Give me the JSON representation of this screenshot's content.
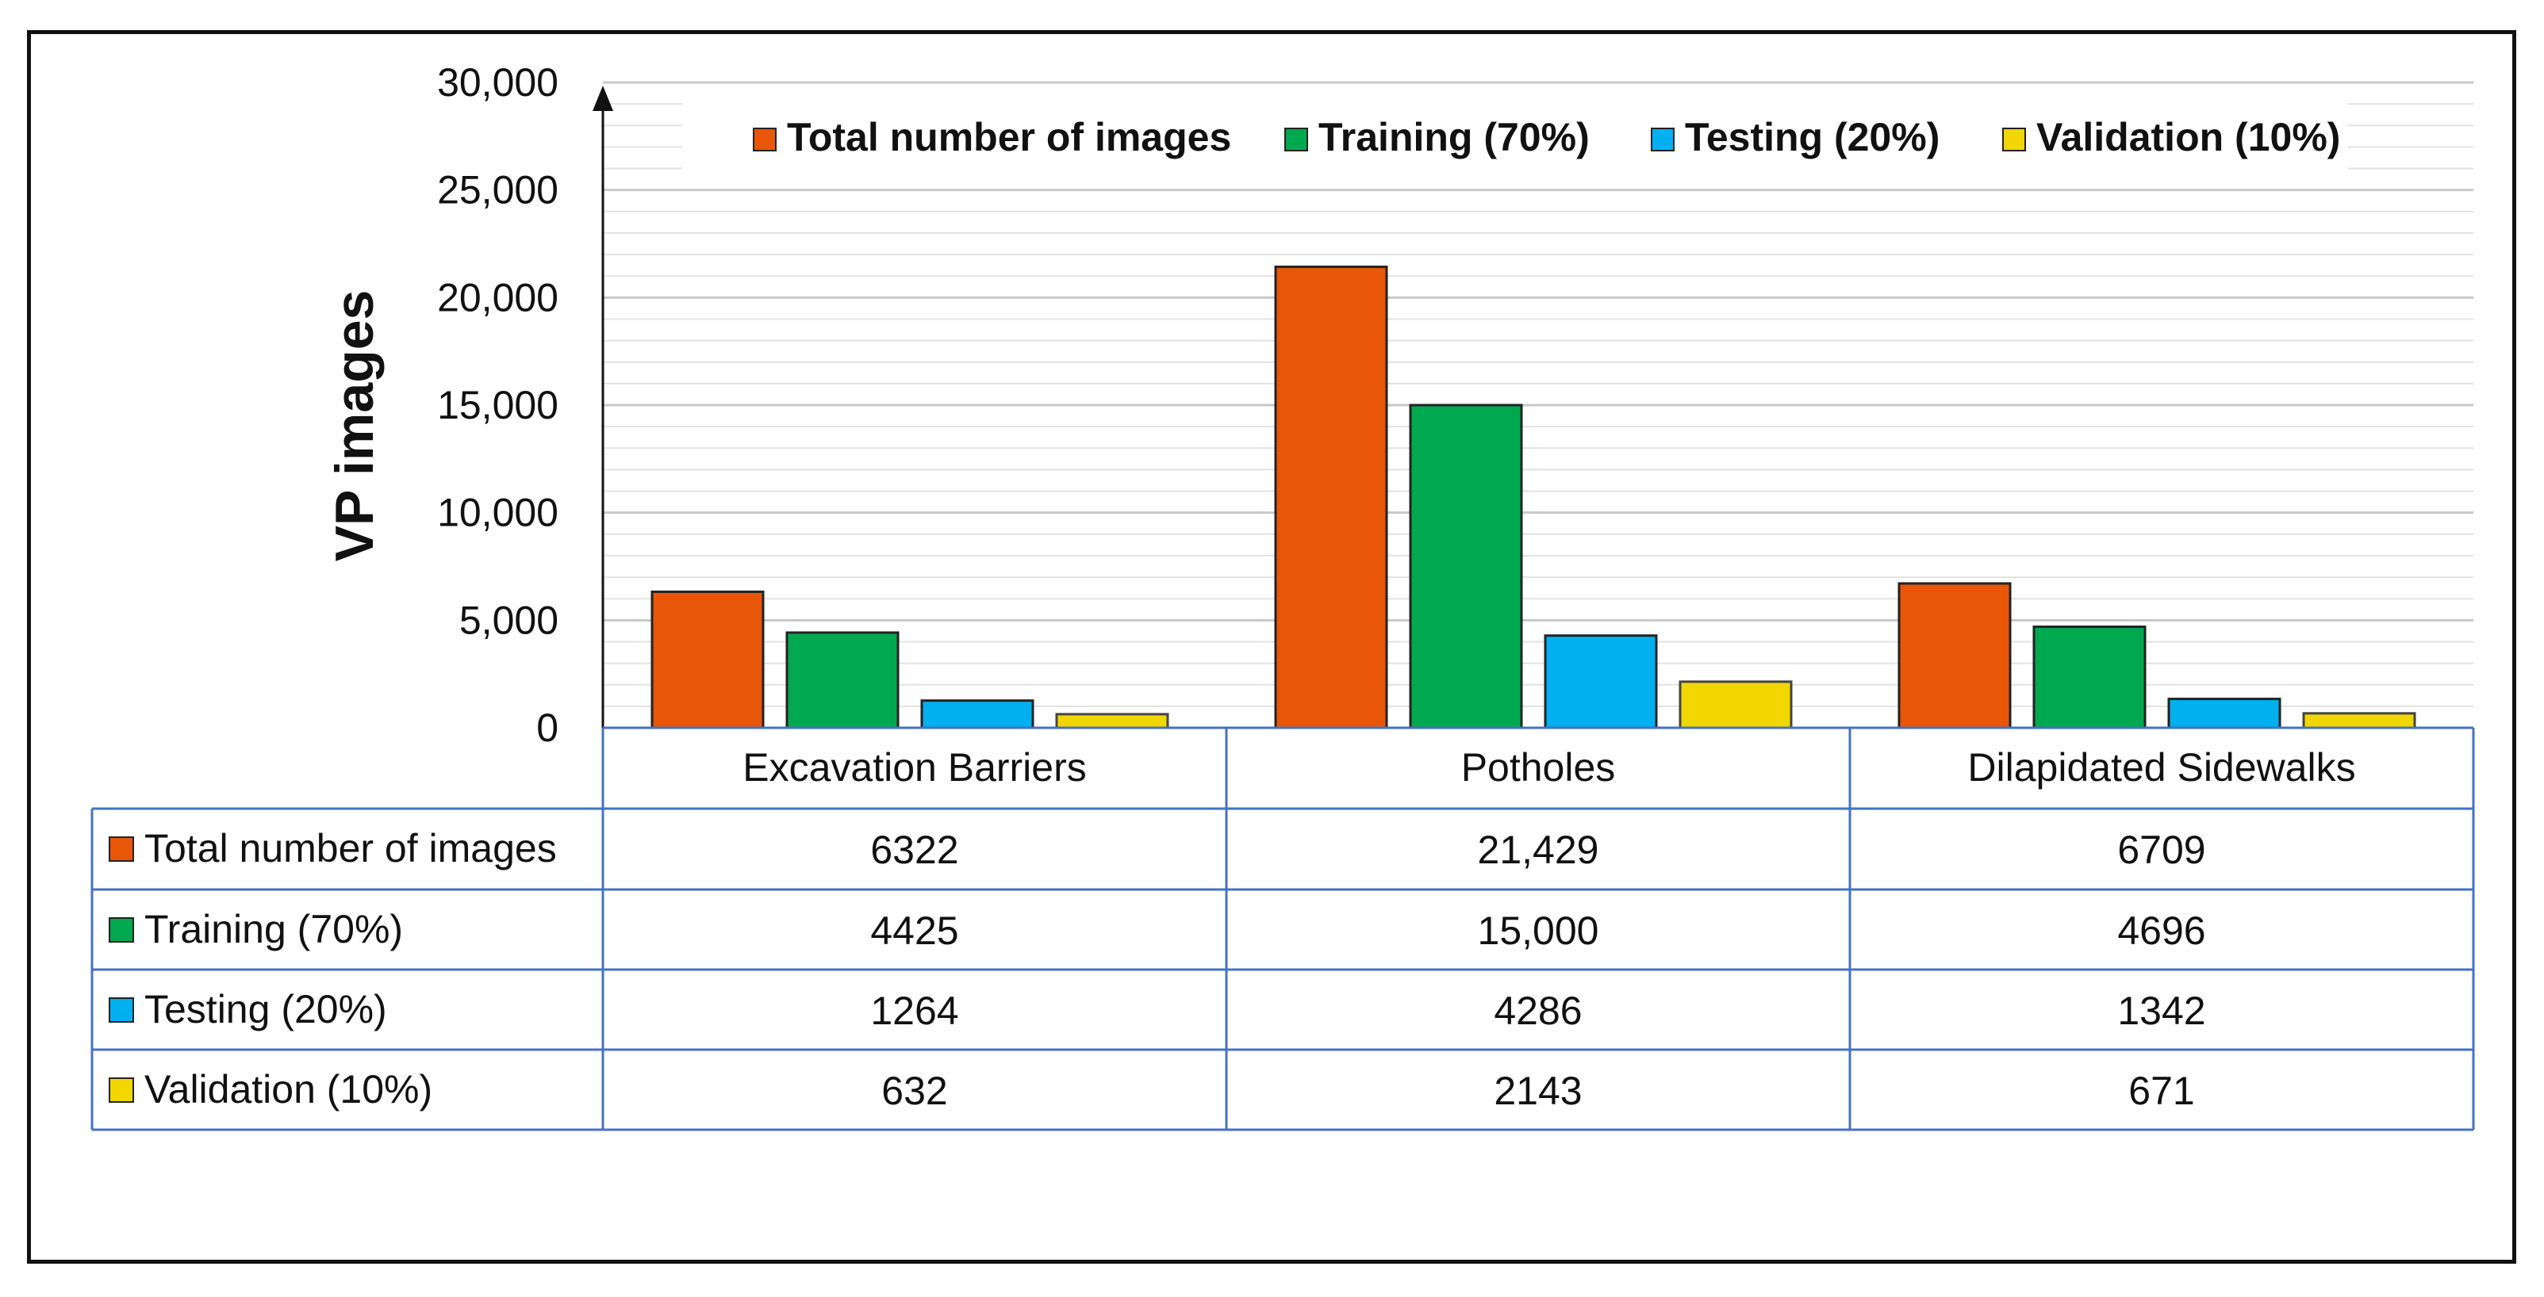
{
  "chart_data": {
    "type": "bar",
    "title": "",
    "xlabel": "",
    "ylabel": "VP images",
    "ylim": [
      0,
      30000
    ],
    "yticks": [
      0,
      5000,
      10000,
      15000,
      20000,
      25000,
      30000
    ],
    "ytick_labels": [
      "0",
      "5,000",
      "10,000",
      "15,000",
      "20,000",
      "25,000",
      "30,000"
    ],
    "grid": true,
    "legend_position": "top",
    "categories": [
      "Excavation Barriers",
      "Potholes",
      "Dilapidated Sidewalks"
    ],
    "series": [
      {
        "name": "Total number of images",
        "color": "#E8560A",
        "values": [
          6322,
          21429,
          6709
        ],
        "labels": [
          "6322",
          "21,429",
          "6709"
        ]
      },
      {
        "name": "Training (70%)",
        "color": "#00A94F",
        "values": [
          4425,
          15000,
          4696
        ],
        "labels": [
          "4425",
          "15,000",
          "4696"
        ]
      },
      {
        "name": "Testing (20%)",
        "color": "#00B0F0",
        "values": [
          1264,
          4286,
          1342
        ],
        "labels": [
          "1264",
          "4286",
          "1342"
        ]
      },
      {
        "name": "Validation (10%)",
        "color": "#F2D600",
        "values": [
          632,
          2143,
          671
        ],
        "labels": [
          "632",
          "2143",
          "671"
        ]
      }
    ],
    "table": true
  }
}
